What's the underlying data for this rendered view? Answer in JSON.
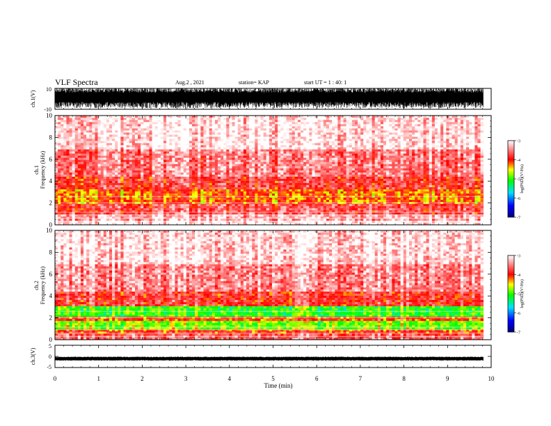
{
  "header": {
    "title": "VLF Spectra",
    "date": "Aug.2 , 2021",
    "station": "station= KAP",
    "start_ut": "start UT = 1 : 40: 1"
  },
  "chart_data": [
    {
      "type": "line",
      "panel": "ch1-waveform",
      "ylabel": "ch.1(V)",
      "ylim": [
        -10,
        10
      ],
      "yticks": [
        "10",
        "-10"
      ],
      "xlim": [
        0,
        10
      ],
      "description": "dense saturated waveform, roughly -8 to +10 V throughout"
    },
    {
      "type": "heatmap",
      "panel": "ch1-spectrogram",
      "ylabel": "ch.1\nFrequency (kHz)",
      "ylabel_line1": "ch.1",
      "ylabel_line2": "Frequency (kHz)",
      "ylim": [
        0,
        10
      ],
      "yticks": [
        "0",
        "2",
        "4",
        "6",
        "8",
        "10"
      ],
      "xlim": [
        0,
        9.82
      ],
      "bands": [
        {
          "from": 0.0,
          "to": 0.3,
          "level": -3.0
        },
        {
          "from": 0.3,
          "to": 1.0,
          "level": -3.3
        },
        {
          "from": 1.0,
          "to": 2.0,
          "level": -3.7
        },
        {
          "from": 2.0,
          "to": 3.3,
          "level": -4.2
        },
        {
          "from": 3.3,
          "to": 4.5,
          "level": -3.8
        },
        {
          "from": 4.5,
          "to": 7.0,
          "level": -3.5
        },
        {
          "from": 7.0,
          "to": 10.0,
          "level": -3.1
        }
      ],
      "colorbar": {
        "label": "log(PSD)(V²/Hz)",
        "min": -7,
        "max": -3,
        "ticks": [
          "-3",
          "-4",
          "-5",
          "-6",
          "-7"
        ]
      }
    },
    {
      "type": "heatmap",
      "panel": "ch2-spectrogram",
      "ylabel": "ch.2\nFrequency (kHz)",
      "ylabel_line1": "ch.2",
      "ylabel_line2": "Frequency (kHz)",
      "ylim": [
        0,
        10
      ],
      "yticks": [
        "0",
        "2",
        "4",
        "6",
        "8",
        "10"
      ],
      "xlim": [
        0,
        9.82
      ],
      "bands": [
        {
          "from": 0.0,
          "to": 0.5,
          "level": -3.6
        },
        {
          "from": 0.5,
          "to": 1.0,
          "level": -4.0
        },
        {
          "from": 1.0,
          "to": 1.8,
          "level": -4.8
        },
        {
          "from": 1.8,
          "to": 2.2,
          "level": -4.0
        },
        {
          "from": 2.2,
          "to": 3.0,
          "level": -5.0
        },
        {
          "from": 3.0,
          "to": 4.5,
          "level": -3.8
        },
        {
          "from": 4.5,
          "to": 7.0,
          "level": -3.4
        },
        {
          "from": 7.0,
          "to": 10.0,
          "level": -3.1
        }
      ],
      "colorbar": {
        "label": "log(PSD)(V²/Hz)",
        "min": -7,
        "max": -3,
        "ticks": [
          "-3",
          "-4",
          "-5",
          "-6",
          "-7"
        ]
      }
    },
    {
      "type": "line",
      "panel": "ch3-waveform",
      "ylabel": "ch.3(V)",
      "ylim": [
        -5,
        5
      ],
      "yticks": [
        "5",
        "0",
        "-5"
      ],
      "xlim": [
        0,
        10
      ],
      "description": "thin band near -1 V throughout"
    }
  ],
  "xaxis": {
    "label": "Time (min)",
    "ticks": [
      "0",
      "1",
      "2",
      "3",
      "4",
      "5",
      "6",
      "7",
      "8",
      "9",
      "10"
    ]
  }
}
